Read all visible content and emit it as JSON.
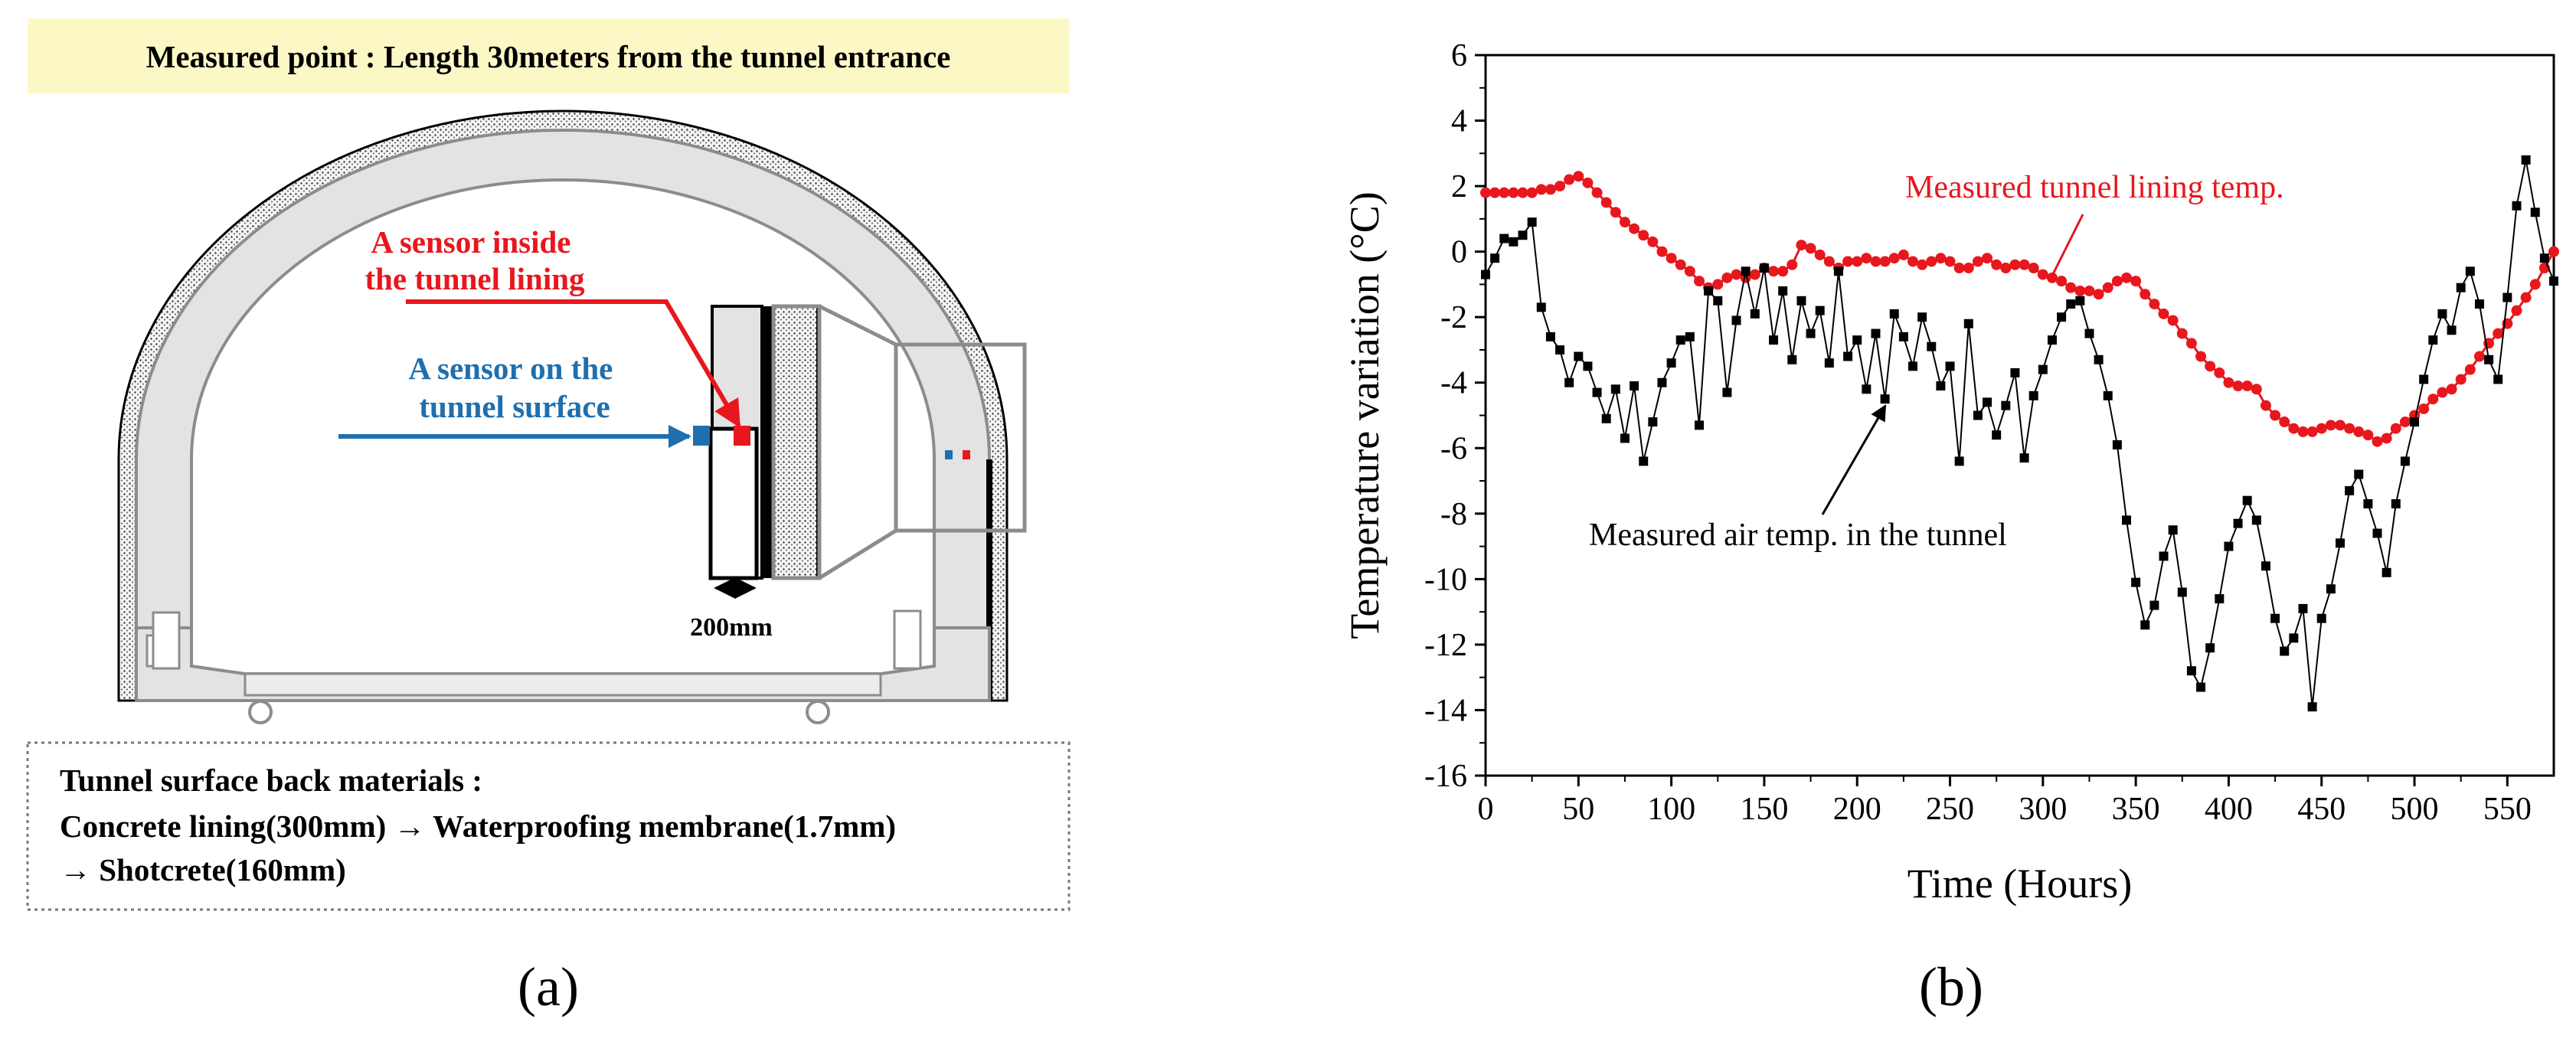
{
  "panel_a": {
    "title": "Measured point : Length 30meters from the tunnel entrance",
    "sensor_inside_label": [
      "A sensor inside",
      "the tunnel lining"
    ],
    "sensor_surface_label": [
      "A sensor on the",
      "tunnel surface"
    ],
    "dimension_label": "200mm",
    "materials_lines": [
      "Tunnel surface back materials :",
      "Concrete lining(300mm) → Waterproofing membrane(1.7mm)",
      "→ Shotcrete(160mm)"
    ],
    "caption": "(a)"
  },
  "panel_b": {
    "caption": "(b)"
  },
  "colors": {
    "red": "#e8171d",
    "blue": "#1f6fae",
    "black": "#000000",
    "title_bg": "#fbf8c6",
    "tunnel_fill": "#e3e3e3",
    "tunnel_stroke": "#8c8c8c"
  },
  "chart_data": {
    "type": "line",
    "title": "",
    "xlabel": "Time (Hours)",
    "ylabel": "Temperature variation (°C)",
    "xlim": [
      0,
      575
    ],
    "ylim": [
      -16,
      6
    ],
    "xticks": [
      0,
      50,
      100,
      150,
      200,
      250,
      300,
      350,
      400,
      450,
      500,
      550
    ],
    "yticks": [
      -16,
      -14,
      -12,
      -10,
      -8,
      -6,
      -4,
      -2,
      0,
      2,
      4,
      6
    ],
    "grid": false,
    "annotations": [
      {
        "text": "Measured tunnel lining temp.",
        "series": "lining",
        "color": "#e8171d"
      },
      {
        "text": "Measured air temp. in the tunnel",
        "series": "air",
        "color": "#000000"
      }
    ],
    "series": [
      {
        "name": "Measured tunnel lining temp.",
        "id": "lining",
        "color": "#e8171d",
        "marker": "circle",
        "x": [
          0,
          5,
          10,
          15,
          20,
          25,
          30,
          35,
          40,
          45,
          50,
          55,
          60,
          65,
          70,
          75,
          80,
          85,
          90,
          95,
          100,
          105,
          110,
          115,
          120,
          125,
          130,
          135,
          140,
          145,
          150,
          155,
          160,
          165,
          170,
          175,
          180,
          185,
          190,
          195,
          200,
          205,
          210,
          215,
          220,
          225,
          230,
          235,
          240,
          245,
          250,
          255,
          260,
          265,
          270,
          275,
          280,
          285,
          290,
          295,
          300,
          305,
          310,
          315,
          320,
          325,
          330,
          335,
          340,
          345,
          350,
          355,
          360,
          365,
          370,
          375,
          380,
          385,
          390,
          395,
          400,
          405,
          410,
          415,
          420,
          425,
          430,
          435,
          440,
          445,
          450,
          455,
          460,
          465,
          470,
          475,
          480,
          485,
          490,
          495,
          500,
          505,
          510,
          515,
          520,
          525,
          530,
          535,
          540,
          545,
          550,
          555,
          560,
          565,
          570,
          575
        ],
        "y": [
          1.8,
          1.8,
          1.8,
          1.8,
          1.8,
          1.8,
          1.9,
          1.9,
          2.0,
          2.2,
          2.3,
          2.1,
          1.8,
          1.5,
          1.2,
          0.9,
          0.7,
          0.5,
          0.3,
          0.0,
          -0.2,
          -0.4,
          -0.6,
          -0.9,
          -1.1,
          -1.0,
          -0.8,
          -0.7,
          -0.8,
          -0.7,
          -0.5,
          -0.6,
          -0.6,
          -0.4,
          0.2,
          0.1,
          -0.1,
          -0.3,
          -0.5,
          -0.3,
          -0.3,
          -0.2,
          -0.3,
          -0.3,
          -0.2,
          -0.1,
          -0.3,
          -0.4,
          -0.3,
          -0.2,
          -0.3,
          -0.5,
          -0.5,
          -0.3,
          -0.2,
          -0.4,
          -0.5,
          -0.4,
          -0.4,
          -0.5,
          -0.7,
          -0.8,
          -0.9,
          -1.1,
          -1.2,
          -1.2,
          -1.3,
          -1.1,
          -0.9,
          -0.8,
          -0.9,
          -1.3,
          -1.6,
          -1.9,
          -2.1,
          -2.5,
          -2.8,
          -3.2,
          -3.5,
          -3.7,
          -4.0,
          -4.1,
          -4.1,
          -4.2,
          -4.7,
          -5.0,
          -5.2,
          -5.4,
          -5.5,
          -5.5,
          -5.4,
          -5.3,
          -5.3,
          -5.4,
          -5.5,
          -5.6,
          -5.8,
          -5.7,
          -5.4,
          -5.2,
          -5.0,
          -4.8,
          -4.5,
          -4.3,
          -4.2,
          -3.9,
          -3.6,
          -3.2,
          -2.8,
          -2.5,
          -2.2,
          -1.8,
          -1.4,
          -1.0,
          -0.5,
          0.0
        ]
      },
      {
        "name": "Measured air temp. in the tunnel",
        "id": "air",
        "color": "#000000",
        "marker": "square",
        "x": [
          0,
          5,
          10,
          15,
          20,
          25,
          30,
          35,
          40,
          45,
          50,
          55,
          60,
          65,
          70,
          75,
          80,
          85,
          90,
          95,
          100,
          105,
          110,
          115,
          120,
          125,
          130,
          135,
          140,
          145,
          150,
          155,
          160,
          165,
          170,
          175,
          180,
          185,
          190,
          195,
          200,
          205,
          210,
          215,
          220,
          225,
          230,
          235,
          240,
          245,
          250,
          255,
          260,
          265,
          270,
          275,
          280,
          285,
          290,
          295,
          300,
          305,
          310,
          315,
          320,
          325,
          330,
          335,
          340,
          345,
          350,
          355,
          360,
          365,
          370,
          375,
          380,
          385,
          390,
          395,
          400,
          405,
          410,
          415,
          420,
          425,
          430,
          435,
          440,
          445,
          450,
          455,
          460,
          465,
          470,
          475,
          480,
          485,
          490,
          495,
          500,
          505,
          510,
          515,
          520,
          525,
          530,
          535,
          540,
          545,
          550,
          555,
          560,
          565,
          570,
          575
        ],
        "y": [
          -0.7,
          -0.2,
          0.4,
          0.3,
          0.5,
          0.9,
          -1.7,
          -2.6,
          -3.0,
          -4.0,
          -3.2,
          -3.5,
          -4.3,
          -5.1,
          -4.2,
          -5.7,
          -4.1,
          -6.4,
          -5.2,
          -4.0,
          -3.4,
          -2.7,
          -2.6,
          -5.3,
          -1.2,
          -1.5,
          -4.3,
          -2.1,
          -0.6,
          -1.9,
          -0.5,
          -2.7,
          -1.2,
          -3.3,
          -1.5,
          -2.5,
          -1.8,
          -3.4,
          -0.6,
          -3.2,
          -2.7,
          -4.2,
          -2.5,
          -4.5,
          -1.9,
          -2.6,
          -3.5,
          -2.0,
          -2.9,
          -4.1,
          -3.5,
          -6.4,
          -2.2,
          -5.0,
          -4.6,
          -5.6,
          -4.7,
          -3.7,
          -6.3,
          -4.4,
          -3.6,
          -2.7,
          -2.0,
          -1.6,
          -1.5,
          -2.5,
          -3.3,
          -4.4,
          -5.9,
          -8.2,
          -10.1,
          -11.4,
          -10.8,
          -9.3,
          -8.5,
          -10.4,
          -12.8,
          -13.3,
          -12.1,
          -10.6,
          -9.0,
          -8.3,
          -7.6,
          -8.2,
          -9.6,
          -11.2,
          -12.2,
          -11.8,
          -10.9,
          -13.9,
          -11.2,
          -10.3,
          -8.9,
          -7.3,
          -6.8,
          -7.7,
          -8.6,
          -9.8,
          -7.7,
          -6.4,
          -5.2,
          -3.9,
          -2.7,
          -1.9,
          -2.4,
          -1.1,
          -0.6,
          -1.6,
          -3.3,
          -3.9,
          -1.4,
          1.4,
          2.8,
          1.2,
          -0.2,
          -0.9
        ]
      }
    ]
  }
}
